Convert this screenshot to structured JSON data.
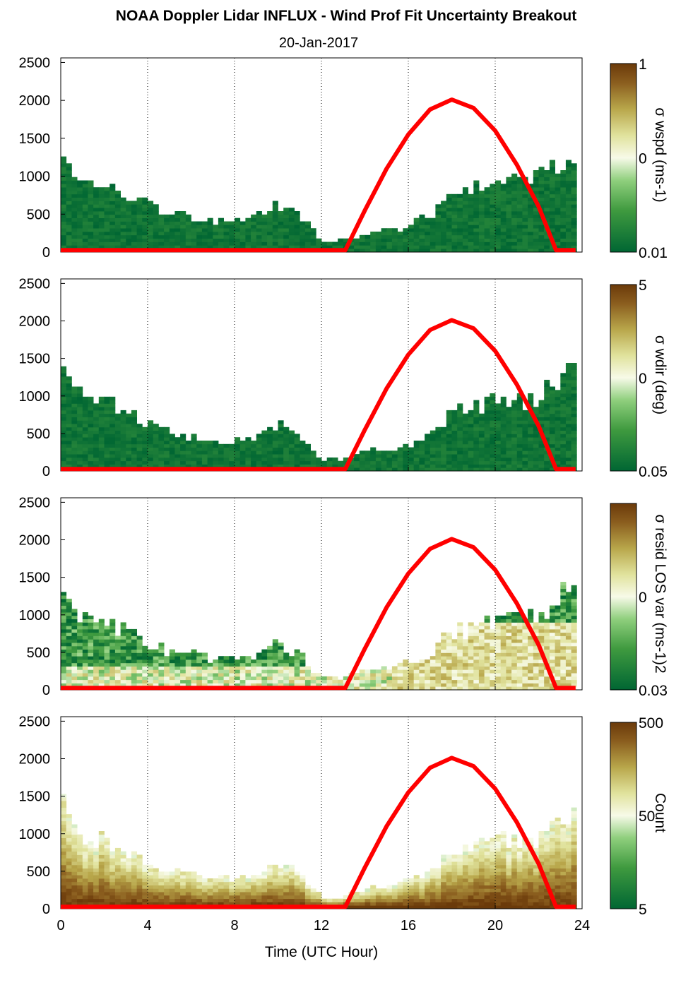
{
  "figure": {
    "title": "NOAA Doppler Lidar INFLUX - Wind Prof Fit Uncertainty Breakout",
    "subtitle": "20-Jan-2017",
    "xlabel": "Time (UTC Hour)"
  },
  "chart_data": {
    "type": "heatmap",
    "x_ticks": [
      "0",
      "4",
      "8",
      "12",
      "16",
      "20",
      "24"
    ],
    "y_ticks": [
      "0",
      "500",
      "1000",
      "1500",
      "2000",
      "2500"
    ],
    "xlim": [
      0,
      24
    ],
    "ylim": [
      0,
      2560
    ],
    "grid": "vertical dotted lines every 4 hours",
    "colors": {
      "low": "#006633",
      "mid": "#f7fae8",
      "high": "#6b3a0a",
      "overlay": "#ff0000"
    },
    "panels": [
      {
        "id": "wspd",
        "colorbar_label": "σ wspd (ms-1)",
        "colorbar_ticks": [
          "1",
          "0",
          "0.01"
        ],
        "mean_level": 0.08
      },
      {
        "id": "wdir",
        "colorbar_label": "σ wdir (deg)",
        "colorbar_ticks": [
          "5",
          "0",
          "0.05"
        ],
        "mean_level": 0.08
      },
      {
        "id": "resid",
        "colorbar_label": "σ resid LOS var (ms-1)2",
        "colorbar_ticks": [
          "0",
          "0.03"
        ],
        "mean_level": 0.4
      },
      {
        "id": "count",
        "colorbar_label": "Count",
        "colorbar_ticks": [
          "500",
          "50",
          "5"
        ],
        "mean_level": 0.95
      }
    ],
    "data_top_height": {
      "hours": [
        0,
        1,
        2,
        3,
        4,
        5,
        6,
        7,
        8,
        9,
        10,
        11,
        12,
        13,
        14,
        15,
        16,
        17,
        18,
        19,
        20,
        21,
        22,
        23,
        23.7
      ],
      "meters": [
        1450,
        950,
        900,
        750,
        600,
        500,
        450,
        380,
        400,
        450,
        600,
        450,
        150,
        120,
        250,
        250,
        350,
        450,
        750,
        800,
        900,
        900,
        950,
        1200,
        1300
      ]
    },
    "overlay_curve": {
      "name": "",
      "hours": [
        0,
        13.1,
        14,
        15,
        16,
        17,
        18,
        19,
        20,
        21,
        22,
        22.8,
        23.7
      ],
      "meters": [
        25,
        25,
        550,
        1100,
        1550,
        1880,
        2010,
        1900,
        1600,
        1150,
        600,
        25,
        25
      ]
    }
  }
}
